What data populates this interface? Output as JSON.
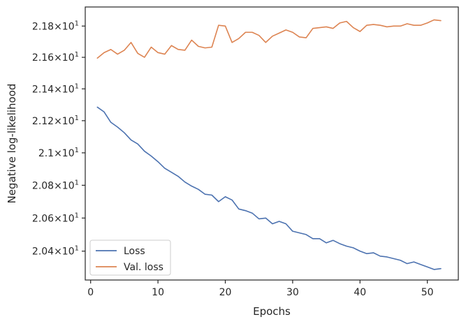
{
  "chart_data": {
    "type": "line",
    "title": "",
    "xlabel": "Epochs",
    "ylabel": "Negative log-likelihood",
    "xlim": [
      -0.8,
      54.6
    ],
    "ylim": [
      20.227,
      21.923
    ],
    "y_scale": "log",
    "grid": false,
    "legend_position": "lower-left",
    "x_ticks": [
      {
        "value": 0,
        "label": "0"
      },
      {
        "value": 10,
        "label": "10"
      },
      {
        "value": 20,
        "label": "20"
      },
      {
        "value": 30,
        "label": "30"
      },
      {
        "value": 40,
        "label": "40"
      },
      {
        "value": 50,
        "label": "50"
      }
    ],
    "y_ticks": [
      {
        "value": 20.4,
        "mantissa": "2.04",
        "exponent": "1"
      },
      {
        "value": 20.6,
        "mantissa": "2.06",
        "exponent": "1"
      },
      {
        "value": 20.8,
        "mantissa": "2.08",
        "exponent": "1"
      },
      {
        "value": 21.0,
        "mantissa": "2.1",
        "exponent": "1"
      },
      {
        "value": 21.2,
        "mantissa": "2.12",
        "exponent": "1"
      },
      {
        "value": 21.4,
        "mantissa": "2.14",
        "exponent": "1"
      },
      {
        "value": 21.6,
        "mantissa": "2.16",
        "exponent": "1"
      },
      {
        "value": 21.8,
        "mantissa": "2.18",
        "exponent": "1"
      }
    ],
    "x": [
      1,
      2,
      3,
      4,
      5,
      6,
      7,
      8,
      9,
      10,
      11,
      12,
      13,
      14,
      15,
      16,
      17,
      18,
      19,
      20,
      21,
      22,
      23,
      24,
      25,
      26,
      27,
      28,
      29,
      30,
      31,
      32,
      33,
      34,
      35,
      36,
      37,
      38,
      39,
      40,
      41,
      42,
      43,
      44,
      45,
      46,
      47,
      48,
      49,
      50,
      51,
      52
    ],
    "series": [
      {
        "name": "Loss",
        "color": "#4c72b0",
        "values": [
          21.285,
          21.255,
          21.19,
          21.16,
          21.125,
          21.08,
          21.055,
          21.01,
          20.98,
          20.945,
          20.905,
          20.88,
          20.855,
          20.82,
          20.795,
          20.775,
          20.745,
          20.74,
          20.7,
          20.73,
          20.71,
          20.655,
          20.645,
          20.63,
          20.595,
          20.6,
          20.565,
          20.58,
          20.565,
          20.52,
          20.51,
          20.5,
          20.475,
          20.475,
          20.45,
          20.465,
          20.445,
          20.43,
          20.42,
          20.4,
          20.385,
          20.39,
          20.37,
          20.365,
          20.355,
          20.345,
          20.325,
          20.335,
          20.32,
          20.305,
          20.29,
          20.295
        ]
      },
      {
        "name": "Val. loss",
        "color": "#dd8452",
        "values": [
          21.595,
          21.63,
          21.65,
          21.62,
          21.645,
          21.695,
          21.625,
          21.6,
          21.665,
          21.63,
          21.62,
          21.675,
          21.65,
          21.645,
          21.71,
          21.67,
          21.66,
          21.665,
          21.805,
          21.8,
          21.695,
          21.72,
          21.76,
          21.76,
          21.74,
          21.695,
          21.735,
          21.755,
          21.775,
          21.76,
          21.73,
          21.725,
          21.785,
          21.79,
          21.795,
          21.785,
          21.82,
          21.83,
          21.79,
          21.765,
          21.805,
          21.81,
          21.805,
          21.795,
          21.8,
          21.8,
          21.815,
          21.805,
          21.805,
          21.82,
          21.84,
          21.835
        ]
      }
    ]
  }
}
